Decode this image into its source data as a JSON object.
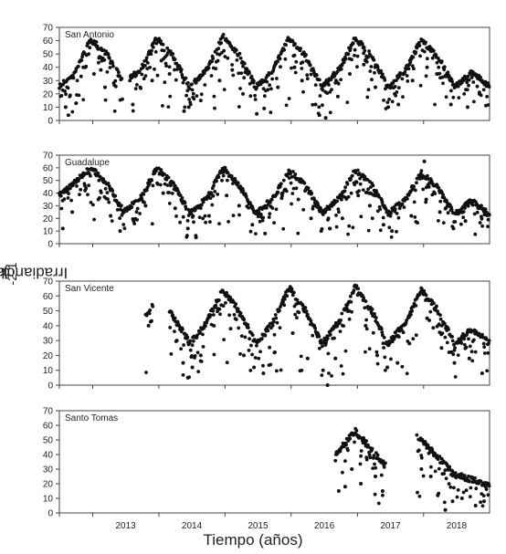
{
  "chart_data": {
    "type": "scatter",
    "ylabel": "Irradiancia (mol m-2 d-1)",
    "ylabel_parts": {
      "before": "Irradiancia (mol m",
      "sup1": "-2",
      "mid": " d",
      "sup2": "-1",
      "after": ")"
    },
    "xlabel": "Tiempo (años)",
    "x_ticks": [
      "2013",
      "2014",
      "2015",
      "2016",
      "2017",
      "2018"
    ],
    "x_range": [
      "2012-07-01",
      "2018-12-31"
    ],
    "marker_color": "#111111",
    "panels": [
      {
        "name": "San Antonio",
        "ylim": [
          0,
          70
        ],
        "yticks": [
          0,
          10,
          20,
          30,
          40,
          50,
          60,
          70
        ],
        "coverage": [
          [
            "2012-07-01",
            "2013-06-15"
          ],
          [
            "2013-07-25",
            "2018-12-31"
          ]
        ],
        "series": [
          {
            "name": "max",
            "points": [
              [
                "2012-07-01",
                28
              ],
              [
                "2012-09-15",
                35
              ],
              [
                "2012-12-21",
                63
              ],
              [
                "2013-03-21",
                52
              ],
              [
                "2013-06-21",
                30
              ],
              [
                "2013-09-23",
                40
              ],
              [
                "2013-12-21",
                64
              ],
              [
                "2014-03-21",
                50
              ],
              [
                "2014-06-21",
                27
              ],
              [
                "2014-09-23",
                40
              ],
              [
                "2014-12-21",
                65
              ],
              [
                "2015-03-21",
                51
              ],
              [
                "2015-06-21",
                27
              ],
              [
                "2015-09-23",
                40
              ],
              [
                "2015-12-21",
                64
              ],
              [
                "2016-03-21",
                50
              ],
              [
                "2016-06-21",
                27
              ],
              [
                "2016-09-23",
                41
              ],
              [
                "2016-12-21",
                64
              ],
              [
                "2017-03-21",
                50
              ],
              [
                "2017-06-21",
                27
              ],
              [
                "2017-09-23",
                40
              ],
              [
                "2017-12-21",
                63
              ],
              [
                "2018-03-21",
                50
              ],
              [
                "2018-06-21",
                27
              ],
              [
                "2018-09-23",
                38
              ],
              [
                "2018-12-31",
                28
              ]
            ]
          },
          {
            "name": "outliers",
            "points": [
              [
                "2012-08-05",
                10
              ],
              [
                "2012-08-20",
                4
              ],
              [
                "2012-10-01",
                13
              ],
              [
                "2012-11-10",
                40
              ],
              [
                "2013-01-08",
                35
              ],
              [
                "2013-02-15",
                38
              ],
              [
                "2013-03-10",
                25
              ],
              [
                "2013-08-10",
                12
              ],
              [
                "2013-11-25",
                30
              ],
              [
                "2014-01-15",
                45
              ],
              [
                "2014-03-01",
                35
              ],
              [
                "2014-05-20",
                7
              ],
              [
                "2014-06-15",
                10
              ],
              [
                "2014-08-20",
                15
              ],
              [
                "2014-12-02",
                30
              ],
              [
                "2015-02-10",
                38
              ],
              [
                "2015-04-10",
                20
              ],
              [
                "2015-06-25",
                5
              ],
              [
                "2015-08-05",
                9
              ],
              [
                "2015-10-20",
                25
              ],
              [
                "2016-01-20",
                40
              ],
              [
                "2016-03-01",
                30
              ],
              [
                "2016-05-15",
                12
              ],
              [
                "2016-06-05",
                4
              ],
              [
                "2016-07-10",
                2
              ],
              [
                "2016-09-15",
                18
              ],
              [
                "2016-11-20",
                35
              ],
              [
                "2017-02-05",
                42
              ],
              [
                "2017-04-10",
                25
              ],
              [
                "2017-06-20",
                10
              ],
              [
                "2017-08-15",
                12
              ],
              [
                "2017-11-01",
                30
              ],
              [
                "2018-01-20",
                40
              ],
              [
                "2018-03-15",
                35
              ],
              [
                "2018-06-01",
                12
              ],
              [
                "2018-09-01",
                10
              ],
              [
                "2018-11-05",
                20
              ]
            ]
          }
        ]
      },
      {
        "name": "Guadalupe",
        "ylim": [
          0,
          70
        ],
        "yticks": [
          0,
          10,
          20,
          30,
          40,
          50,
          60,
          70
        ],
        "coverage": [
          [
            "2012-07-01",
            "2018-12-31"
          ]
        ],
        "series": [
          {
            "name": "max",
            "points": [
              [
                "2012-07-01",
                40
              ],
              [
                "2012-12-21",
                62
              ],
              [
                "2013-03-21",
                50
              ],
              [
                "2013-06-21",
                27
              ],
              [
                "2013-09-23",
                38
              ],
              [
                "2013-12-21",
                62
              ],
              [
                "2014-03-21",
                49
              ],
              [
                "2014-06-21",
                26
              ],
              [
                "2014-09-23",
                38
              ],
              [
                "2014-12-21",
                62
              ],
              [
                "2015-03-21",
                48
              ],
              [
                "2015-06-21",
                26
              ],
              [
                "2015-09-23",
                38
              ],
              [
                "2015-12-21",
                60
              ],
              [
                "2016-03-21",
                48
              ],
              [
                "2016-06-21",
                26
              ],
              [
                "2016-09-23",
                38
              ],
              [
                "2016-12-21",
                60
              ],
              [
                "2017-03-21",
                48
              ],
              [
                "2017-06-21",
                26
              ],
              [
                "2017-09-23",
                37
              ],
              [
                "2017-12-21",
                58
              ],
              [
                "2018-03-21",
                46
              ],
              [
                "2018-06-21",
                25
              ],
              [
                "2018-09-23",
                36
              ],
              [
                "2018-12-31",
                25
              ]
            ]
          },
          {
            "name": "outliers",
            "points": [
              [
                "2012-07-20",
                12
              ],
              [
                "2012-09-10",
                25
              ],
              [
                "2012-11-20",
                42
              ],
              [
                "2013-02-01",
                35
              ],
              [
                "2013-04-10",
                22
              ],
              [
                "2013-06-01",
                10
              ],
              [
                "2013-08-15",
                18
              ],
              [
                "2013-10-20",
                30
              ],
              [
                "2014-01-25",
                40
              ],
              [
                "2014-04-01",
                28
              ],
              [
                "2014-06-10",
                12
              ],
              [
                "2014-07-25",
                5
              ],
              [
                "2014-10-05",
                22
              ],
              [
                "2015-01-10",
                38
              ],
              [
                "2015-03-20",
                30
              ],
              [
                "2015-06-01",
                15
              ],
              [
                "2015-08-10",
                8
              ],
              [
                "2015-11-10",
                36
              ],
              [
                "2016-02-10",
                35
              ],
              [
                "2016-04-20",
                20
              ],
              [
                "2016-06-15",
                10
              ],
              [
                "2016-08-01",
                12
              ],
              [
                "2016-10-10",
                20
              ],
              [
                "2017-01-05",
                38
              ],
              [
                "2017-03-10",
                30
              ],
              [
                "2017-05-25",
                15
              ],
              [
                "2017-07-10",
                10
              ],
              [
                "2017-10-25",
                22
              ],
              [
                "2018-01-15",
                35
              ],
              [
                "2018-04-01",
                25
              ],
              [
                "2018-06-15",
                12
              ],
              [
                "2018-08-20",
                18
              ],
              [
                "2018-11-15",
                30
              ],
              [
                "2018-01-05",
                65
              ]
            ]
          }
        ]
      },
      {
        "name": "San Vicente",
        "ylim": [
          0,
          70
        ],
        "yticks": [
          0,
          10,
          20,
          30,
          40,
          50,
          60,
          70
        ],
        "coverage": [
          [
            "2013-10-20",
            "2013-11-30"
          ],
          [
            "2014-03-01",
            "2018-12-31"
          ]
        ],
        "series": [
          {
            "name": "max",
            "points": [
              [
                "2013-10-20",
                48
              ],
              [
                "2013-11-30",
                56
              ],
              [
                "2014-03-01",
                52
              ],
              [
                "2014-06-21",
                30
              ],
              [
                "2014-09-23",
                45
              ],
              [
                "2014-12-21",
                66
              ],
              [
                "2015-03-21",
                52
              ],
              [
                "2015-06-21",
                30
              ],
              [
                "2015-09-23",
                44
              ],
              [
                "2015-12-21",
                68
              ],
              [
                "2016-03-21",
                52
              ],
              [
                "2016-06-21",
                30
              ],
              [
                "2016-09-23",
                45
              ],
              [
                "2016-12-21",
                68
              ],
              [
                "2017-03-21",
                52
              ],
              [
                "2017-06-21",
                30
              ],
              [
                "2017-09-23",
                44
              ],
              [
                "2017-12-21",
                66
              ],
              [
                "2018-03-21",
                52
              ],
              [
                "2018-06-21",
                30
              ],
              [
                "2018-09-23",
                40
              ],
              [
                "2018-12-31",
                30
              ]
            ]
          },
          {
            "name": "outliers",
            "points": [
              [
                "2013-11-05",
                40
              ],
              [
                "2014-04-10",
                30
              ],
              [
                "2014-05-15",
                15
              ],
              [
                "2014-06-10",
                5
              ],
              [
                "2014-07-05",
                12
              ],
              [
                "2014-08-20",
                20
              ],
              [
                "2014-11-01",
                40
              ],
              [
                "2015-02-01",
                38
              ],
              [
                "2015-04-15",
                20
              ],
              [
                "2015-06-10",
                12
              ],
              [
                "2015-08-01",
                8
              ],
              [
                "2015-10-01",
                22
              ],
              [
                "2016-01-10",
                35
              ],
              [
                "2016-04-01",
                18
              ],
              [
                "2016-06-25",
                10
              ],
              [
                "2016-07-20",
                0
              ],
              [
                "2016-09-01",
                18
              ],
              [
                "2016-11-15",
                50
              ],
              [
                "2017-02-15",
                40
              ],
              [
                "2017-04-20",
                20
              ],
              [
                "2017-06-15",
                12
              ],
              [
                "2017-08-10",
                15
              ],
              [
                "2017-10-15",
                28
              ],
              [
                "2018-01-20",
                45
              ],
              [
                "2018-04-10",
                25
              ],
              [
                "2018-06-20",
                15
              ],
              [
                "2018-09-10",
                18
              ],
              [
                "2018-11-20",
                8
              ]
            ]
          }
        ]
      },
      {
        "name": "Santo Tomas",
        "ylim": [
          0,
          70
        ],
        "yticks": [
          0,
          10,
          20,
          30,
          40,
          50,
          60,
          70
        ],
        "coverage": [
          [
            "2016-09-01",
            "2017-06-05"
          ],
          [
            "2017-11-25",
            "2018-12-31"
          ]
        ],
        "series": [
          {
            "name": "max",
            "points": [
              [
                "2016-09-01",
                42
              ],
              [
                "2016-12-21",
                58
              ],
              [
                "2017-03-21",
                45
              ],
              [
                "2017-06-05",
                34
              ],
              [
                "2017-11-25",
                55
              ],
              [
                "2018-01-20",
                48
              ],
              [
                "2018-03-21",
                40
              ],
              [
                "2018-06-21",
                28
              ],
              [
                "2018-09-23",
                25
              ],
              [
                "2018-12-31",
                20
              ]
            ]
          },
          {
            "name": "outliers",
            "points": [
              [
                "2016-09-20",
                15
              ],
              [
                "2016-10-25",
                18
              ],
              [
                "2016-12-01",
                30
              ],
              [
                "2017-01-20",
                20
              ],
              [
                "2017-02-20",
                38
              ],
              [
                "2017-04-10",
                25
              ],
              [
                "2017-05-20",
                15
              ],
              [
                "2017-12-20",
                30
              ],
              [
                "2018-02-10",
                25
              ],
              [
                "2018-03-20",
                12
              ],
              [
                "2018-05-01",
                2
              ],
              [
                "2018-06-10",
                8
              ],
              [
                "2018-08-01",
                10
              ],
              [
                "2018-10-15",
                5
              ],
              [
                "2018-12-01",
                8
              ]
            ]
          }
        ]
      }
    ]
  }
}
